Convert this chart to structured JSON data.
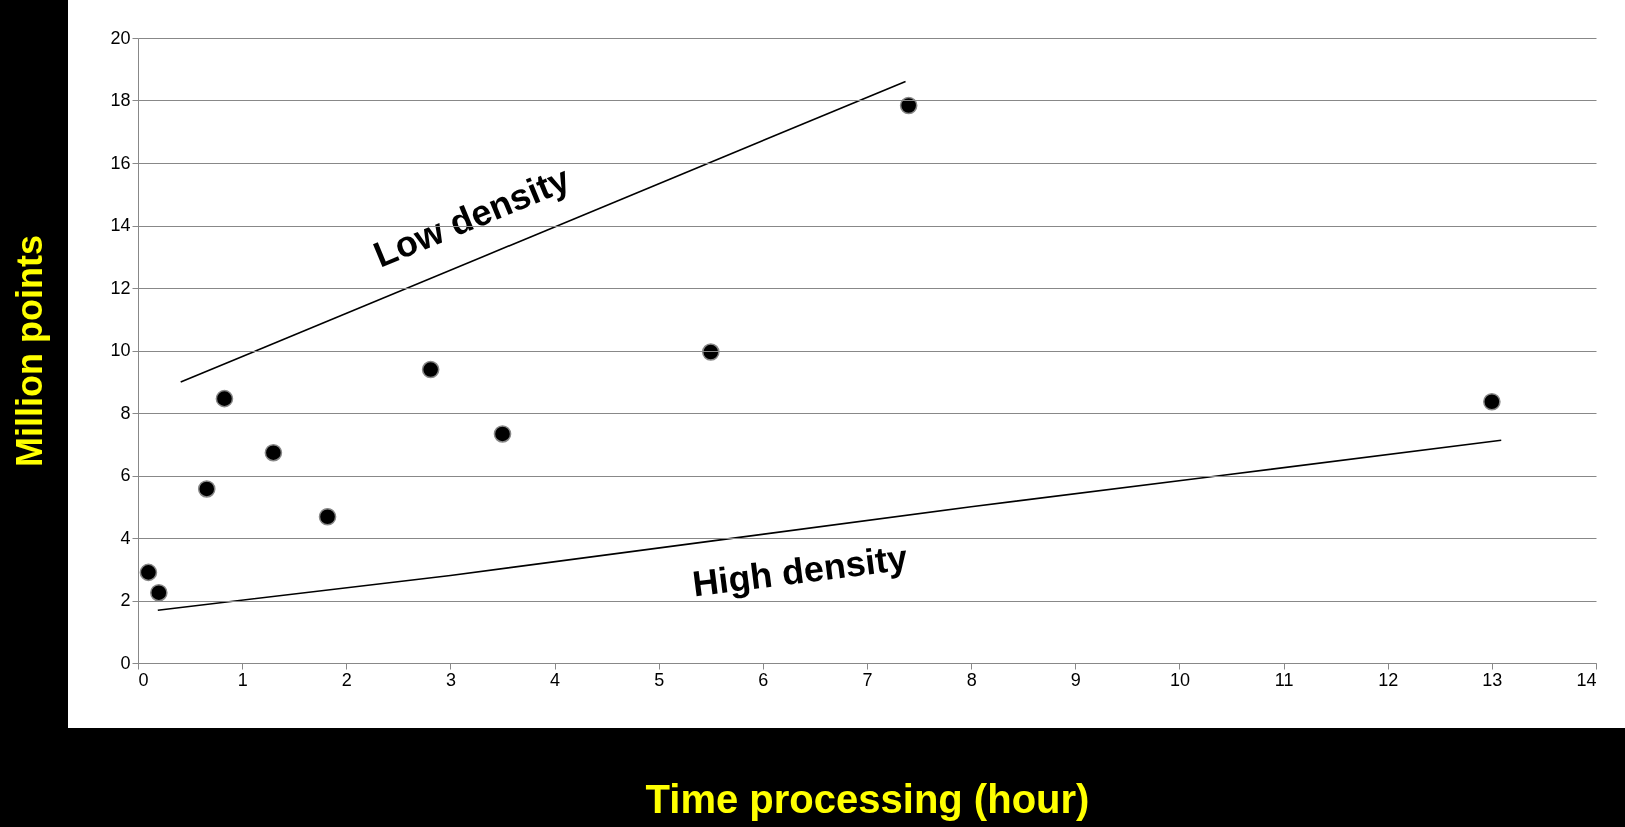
{
  "chart_data": {
    "type": "scatter",
    "xlabel": "Time processing (hour)",
    "ylabel": "Million points",
    "xlim": [
      0,
      14
    ],
    "xticks": [
      0,
      1,
      2,
      3,
      4,
      5,
      6,
      7,
      8,
      9,
      10,
      11,
      12,
      13,
      14
    ],
    "ylim": [
      0,
      20
    ],
    "yticks": [
      0,
      2,
      4,
      6,
      8,
      10,
      12,
      14,
      16,
      18,
      20
    ],
    "grid": "y",
    "series": [
      {
        "color": "#000000",
        "marker": "circle",
        "x": [
          0.1,
          0.2,
          0.66,
          0.83,
          1.3,
          1.82,
          2.81,
          3.5,
          5.5,
          7.4,
          13.0
        ],
        "values": [
          2.9,
          2.25,
          5.57,
          8.46,
          6.73,
          4.68,
          9.39,
          7.33,
          9.95,
          17.84,
          8.36
        ]
      },
      {
        "type": "line",
        "color": "#000000",
        "line_style": "solid",
        "x": [
          0.41,
          7.37
        ],
        "values": [
          8.99,
          18.61
        ]
      },
      {
        "type": "line",
        "color": "#000000",
        "line_style": "solid",
        "x": [
          0.19,
          3.0,
          5.5,
          8.0,
          10.4,
          13.09
        ],
        "values": [
          1.69,
          2.8,
          3.9,
          5.0,
          6.0,
          7.13
        ]
      }
    ],
    "annotations": [
      "Low density",
      "High density"
    ]
  }
}
